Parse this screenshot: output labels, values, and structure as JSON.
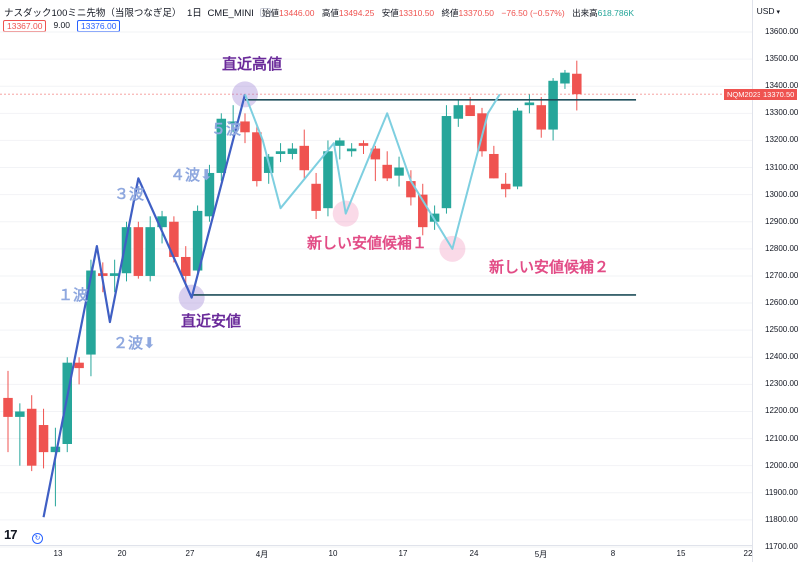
{
  "header": {
    "symbol": "ナスダック100ミニ先物（当限つなぎ足）",
    "interval": "1日",
    "exchange": "CME_MINI",
    "ohlc": [
      {
        "label": "始値",
        "value": "13446.00"
      },
      {
        "label": "高値",
        "value": "13494.25"
      },
      {
        "label": "安値",
        "value": "13310.50"
      },
      {
        "label": "終値",
        "value": "13370.50"
      },
      {
        "label": "change",
        "value": "−76.50 (−0.57%)"
      }
    ],
    "volume_label": "出来高",
    "volume_value": "618.786K",
    "bid": "13367.00",
    "spread": "9.00",
    "ask": "13376.00",
    "currency": "USD"
  },
  "price_tag": {
    "symbol_label": "NQM2023",
    "last_price": "13370.50",
    "color": "#ef5350"
  },
  "annotations": {
    "wave1": "１波",
    "wave2": "２波⬇",
    "wave3": "３波",
    "wave4": "４波⬇",
    "wave5": "５波",
    "recent_high": "直近高値",
    "recent_low": "直近安値",
    "new_low_candidate_1": "新しい安値候補１",
    "new_low_candidate_2": "新しい安値候補２"
  },
  "footer": {
    "logo": "17",
    "goto_icon": "goto-realtime-icon"
  },
  "chart_data": {
    "type": "candlestick",
    "y_ticks": [
      "13600.00",
      "13500.00",
      "13400.00",
      "13300.00",
      "13200.00",
      "13100.00",
      "13000.00",
      "12900.00",
      "12800.00",
      "12700.00",
      "12600.00",
      "12500.00",
      "12400.00",
      "12300.00",
      "12200.00",
      "12100.00",
      "12000.00",
      "11900.00",
      "11800.00",
      "11700.00"
    ],
    "x_ticks": [
      "13",
      "20",
      "27",
      "4月",
      "10",
      "17",
      "24",
      "5月",
      "8",
      "15",
      "22"
    ],
    "ylim": [
      11700,
      13600
    ],
    "up_color": "#26a69a",
    "down_color": "#ef5350",
    "candles": [
      {
        "o": 12250,
        "h": 12350,
        "l": 12050,
        "c": 12180
      },
      {
        "o": 12180,
        "h": 12230,
        "l": 12000,
        "c": 12200
      },
      {
        "o": 12210,
        "h": 12260,
        "l": 11980,
        "c": 12000
      },
      {
        "o": 12150,
        "h": 12210,
        "l": 11990,
        "c": 12050
      },
      {
        "o": 12050,
        "h": 12140,
        "l": 11850,
        "c": 12070
      },
      {
        "o": 12080,
        "h": 12400,
        "l": 12050,
        "c": 12380
      },
      {
        "o": 12380,
        "h": 12400,
        "l": 12300,
        "c": 12360
      },
      {
        "o": 12410,
        "h": 12760,
        "l": 12330,
        "c": 12720
      },
      {
        "o": 12710,
        "h": 12750,
        "l": 12640,
        "c": 12700
      },
      {
        "o": 12700,
        "h": 12760,
        "l": 12640,
        "c": 12710
      },
      {
        "o": 12710,
        "h": 12900,
        "l": 12680,
        "c": 12880
      },
      {
        "o": 12880,
        "h": 12900,
        "l": 12690,
        "c": 12700
      },
      {
        "o": 12700,
        "h": 12920,
        "l": 12680,
        "c": 12880
      },
      {
        "o": 12880,
        "h": 12940,
        "l": 12820,
        "c": 12920
      },
      {
        "o": 12900,
        "h": 12920,
        "l": 12750,
        "c": 12770
      },
      {
        "o": 12770,
        "h": 12810,
        "l": 12660,
        "c": 12700
      },
      {
        "o": 12720,
        "h": 12960,
        "l": 12700,
        "c": 12940
      },
      {
        "o": 12920,
        "h": 13110,
        "l": 12900,
        "c": 13080
      },
      {
        "o": 13080,
        "h": 13300,
        "l": 13050,
        "c": 13280
      },
      {
        "o": 13260,
        "h": 13330,
        "l": 13230,
        "c": 13270
      },
      {
        "o": 13270,
        "h": 13300,
        "l": 13190,
        "c": 13230
      },
      {
        "o": 13230,
        "h": 13260,
        "l": 13030,
        "c": 13050
      },
      {
        "o": 13080,
        "h": 13150,
        "l": 13040,
        "c": 13140
      },
      {
        "o": 13150,
        "h": 13190,
        "l": 13120,
        "c": 13160
      },
      {
        "o": 13150,
        "h": 13190,
        "l": 13130,
        "c": 13170
      },
      {
        "o": 13180,
        "h": 13240,
        "l": 13060,
        "c": 13090
      },
      {
        "o": 13040,
        "h": 13080,
        "l": 12910,
        "c": 12940
      },
      {
        "o": 12950,
        "h": 13200,
        "l": 12920,
        "c": 13160
      },
      {
        "o": 13180,
        "h": 13210,
        "l": 13130,
        "c": 13200
      },
      {
        "o": 13160,
        "h": 13190,
        "l": 13140,
        "c": 13170
      },
      {
        "o": 13190,
        "h": 13200,
        "l": 13150,
        "c": 13180
      },
      {
        "o": 13170,
        "h": 13180,
        "l": 13050,
        "c": 13130
      },
      {
        "o": 13110,
        "h": 13160,
        "l": 13050,
        "c": 13060
      },
      {
        "o": 13070,
        "h": 13140,
        "l": 13030,
        "c": 13100
      },
      {
        "o": 13050,
        "h": 13090,
        "l": 12960,
        "c": 12990
      },
      {
        "o": 13000,
        "h": 13040,
        "l": 12850,
        "c": 12880
      },
      {
        "o": 12900,
        "h": 12960,
        "l": 12870,
        "c": 12930
      },
      {
        "o": 12950,
        "h": 13330,
        "l": 12930,
        "c": 13290
      },
      {
        "o": 13280,
        "h": 13350,
        "l": 13250,
        "c": 13330
      },
      {
        "o": 13330,
        "h": 13360,
        "l": 13290,
        "c": 13290
      },
      {
        "o": 13300,
        "h": 13320,
        "l": 13140,
        "c": 13160
      },
      {
        "o": 13150,
        "h": 13180,
        "l": 13060,
        "c": 13060
      },
      {
        "o": 13040,
        "h": 13080,
        "l": 12990,
        "c": 13020
      },
      {
        "o": 13030,
        "h": 13320,
        "l": 13020,
        "c": 13310
      },
      {
        "o": 13330,
        "h": 13370,
        "l": 13300,
        "c": 13340
      },
      {
        "o": 13330,
        "h": 13360,
        "l": 13210,
        "c": 13240
      },
      {
        "o": 13240,
        "h": 13430,
        "l": 13200,
        "c": 13420
      },
      {
        "o": 13410,
        "h": 13460,
        "l": 13390,
        "c": 13450
      },
      {
        "o": 13446,
        "h": 13494.25,
        "l": 13310.5,
        "c": 13370.5
      }
    ],
    "wave_path": [
      {
        "i": 3,
        "p": 11810
      },
      {
        "i": 7.5,
        "p": 12810
      },
      {
        "i": 8.6,
        "p": 12530
      },
      {
        "i": 11,
        "p": 13060
      },
      {
        "i": 15.5,
        "p": 12620
      },
      {
        "i": 20,
        "p": 13370
      }
    ],
    "close_path_points": [
      {
        "i": 20,
        "p": 13370
      },
      {
        "i": 21.5,
        "p": 13200
      },
      {
        "i": 23,
        "p": 12950
      },
      {
        "i": 27.5,
        "p": 13190
      },
      {
        "i": 28.5,
        "p": 12930
      },
      {
        "i": 32,
        "p": 13300
      },
      {
        "i": 34,
        "p": 13050
      },
      {
        "i": 37.5,
        "p": 12800
      },
      {
        "i": 40.5,
        "p": 13300
      },
      {
        "i": 41.5,
        "p": 13370
      }
    ],
    "horizontal_levels": [
      {
        "p": 13350,
        "from_i": 20,
        "to_i": 53
      },
      {
        "p": 12630,
        "from_i": 15.5,
        "to_i": 53
      }
    ],
    "dashed_last_price": 13370.5
  }
}
